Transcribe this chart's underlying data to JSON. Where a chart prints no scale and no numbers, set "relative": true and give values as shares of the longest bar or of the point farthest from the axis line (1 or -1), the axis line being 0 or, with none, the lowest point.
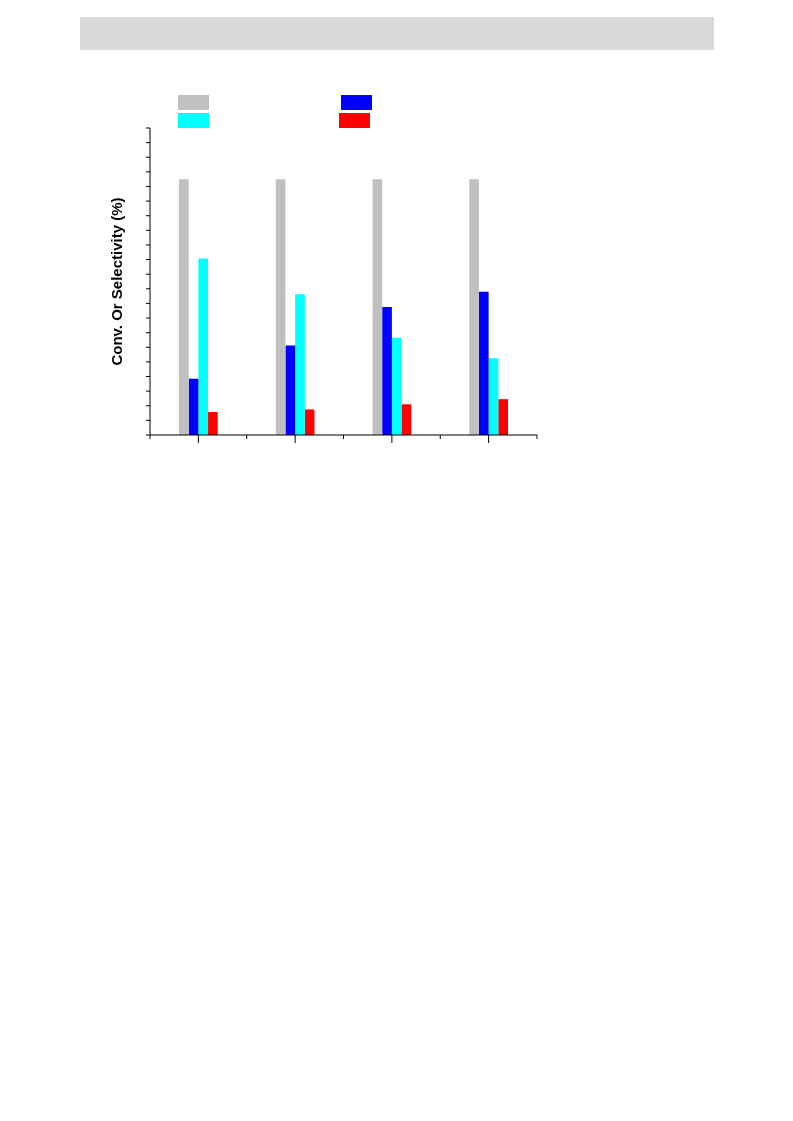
{
  "chart_data": {
    "type": "bar",
    "ylabel": "Conv. Or Selectivity (%)",
    "relative": true,
    "categories": [
      null,
      null,
      null,
      null
    ],
    "series": [
      {
        "color": "#c0c0c0",
        "values": [
          1,
          1,
          1,
          1
        ]
      },
      {
        "color": "#0000ff",
        "values": [
          0.22,
          0.35,
          0.5,
          0.56
        ]
      },
      {
        "color": "#00ffff",
        "values": [
          0.69,
          0.55,
          0.38,
          0.3
        ]
      },
      {
        "color": "#ff0000",
        "values": [
          0.09,
          0.1,
          0.12,
          0.14
        ]
      }
    ]
  }
}
